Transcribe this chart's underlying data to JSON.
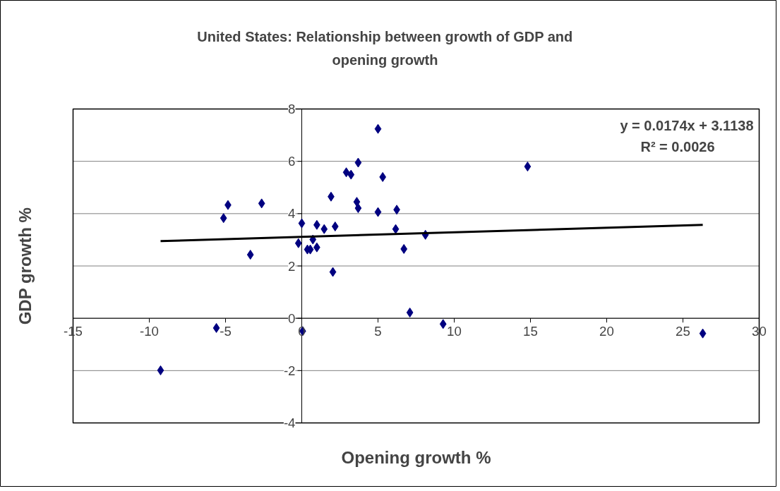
{
  "chart_data": {
    "type": "scatter",
    "title": "United States: Relationship between growth of GDP and opening growth",
    "xlabel": "Opening growth %",
    "ylabel": "GDP growth %",
    "series": [
      {
        "color": "#000080",
        "marker": "diamond",
        "x": [
          -9.26,
          -5.6,
          -5.13,
          -4.84,
          -2.63,
          -3.37,
          0.0,
          -0.22,
          0.06,
          0.37,
          0.56,
          0.73,
          0.99,
          0.99,
          1.47,
          1.92,
          2.04,
          2.19,
          2.92,
          3.23,
          3.7,
          3.61,
          3.7,
          5.0,
          5.31,
          5.0,
          6.23,
          6.16,
          6.7,
          8.11,
          7.09,
          9.27,
          14.81,
          26.3
        ],
        "values": [
          -1.99,
          -0.37,
          3.83,
          4.33,
          4.39,
          2.43,
          3.63,
          2.87,
          -0.49,
          2.63,
          2.63,
          3.01,
          2.71,
          3.57,
          3.41,
          4.65,
          1.77,
          3.51,
          5.58,
          5.49,
          5.95,
          4.45,
          4.21,
          7.24,
          5.4,
          4.06,
          4.15,
          3.41,
          2.65,
          3.19,
          0.22,
          -0.22,
          5.8,
          -0.58
        ]
      },
      {
        "type": "line",
        "color": "#000000",
        "x": [
          -9.26,
          26.3
        ],
        "values": [
          2.95,
          3.57
        ]
      }
    ],
    "annotations": [
      "y = 0.0174x + 3.1138",
      "R² = 0.0026"
    ],
    "xlim": [
      -15,
      30
    ],
    "xticks": [
      -15,
      -10,
      -5,
      0,
      5,
      10,
      15,
      20,
      25,
      30
    ],
    "ylim": [
      -4,
      8
    ],
    "yticks": [
      -4,
      -2,
      0,
      2,
      4,
      6,
      8
    ],
    "grid": "y",
    "line_style": "solid"
  }
}
